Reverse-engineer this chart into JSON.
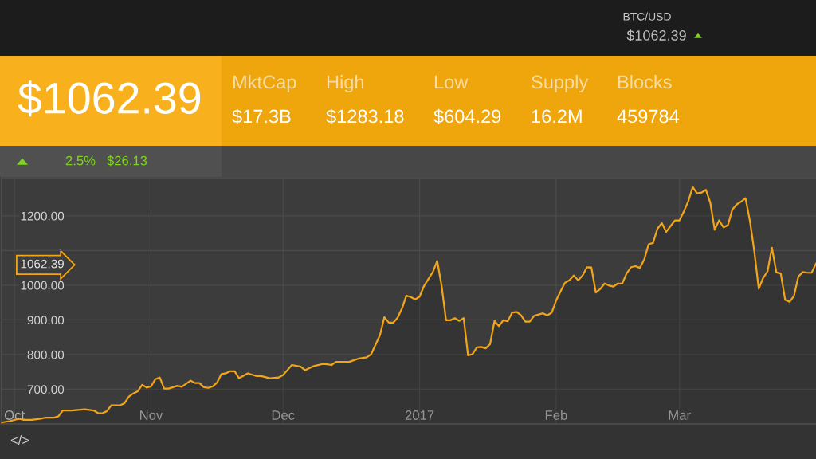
{
  "chart_data": [
    {
      "type": "other",
      "annotations": [
        "BTC/USD",
        "$1062.39",
        "$1062.39",
        "MktCap",
        "$17.3B",
        "High",
        "$1283.18",
        "Low",
        "$604.29",
        "Supply",
        "16.2M",
        "Blocks",
        "459784",
        "2.5%",
        "$26.13"
      ]
    },
    {
      "type": "area",
      "xlim": [
        "2016-09-28",
        "2017-04-01"
      ],
      "ylim": [
        600,
        1310
      ],
      "xticks": [
        {
          "value": "2016-10-01",
          "label": "Oct"
        },
        {
          "value": "2016-11-01",
          "label": "Nov"
        },
        {
          "value": "2016-12-01",
          "label": "Dec"
        },
        {
          "value": "2017-01-01",
          "label": "2017"
        },
        {
          "value": "2017-02-01",
          "label": "Feb"
        },
        {
          "value": "2017-03-01",
          "label": "Mar"
        }
      ],
      "yticks": [
        {
          "value": 700,
          "label": "700.00"
        },
        {
          "value": 800,
          "label": "800.00"
        },
        {
          "value": 900,
          "label": "900.00"
        },
        {
          "value": 1000,
          "label": "1000.00"
        },
        {
          "value": 1062.39,
          "label": "1062.39"
        },
        {
          "value": 1100,
          "label": null
        },
        {
          "value": 1200,
          "label": "1200.00"
        }
      ],
      "grid": true,
      "annotations": [
        "</>"
      ],
      "x": [
        "2016-09-28",
        "2016-09-30",
        "2016-10-02",
        "2016-10-03",
        "2016-10-05",
        "2016-10-07",
        "2016-10-08",
        "2016-10-10",
        "2016-10-11",
        "2016-10-12",
        "2016-10-14",
        "2016-10-16",
        "2016-10-17",
        "2016-10-19",
        "2016-10-20",
        "2016-10-21",
        "2016-10-22",
        "2016-10-23",
        "2016-10-25",
        "2016-10-26",
        "2016-10-27",
        "2016-10-28",
        "2016-10-29",
        "2016-10-30",
        "2016-10-31",
        "2016-11-01",
        "2016-11-02",
        "2016-11-03",
        "2016-11-04",
        "2016-11-05",
        "2016-11-07",
        "2016-11-08",
        "2016-11-10",
        "2016-11-11",
        "2016-11-12",
        "2016-11-13",
        "2016-11-14",
        "2016-11-15",
        "2016-11-16",
        "2016-11-17",
        "2016-11-18",
        "2016-11-19",
        "2016-11-20",
        "2016-11-21",
        "2016-11-23",
        "2016-11-25",
        "2016-11-26",
        "2016-11-28",
        "2016-11-30",
        "2016-12-01",
        "2016-12-03",
        "2016-12-05",
        "2016-12-06",
        "2016-12-08",
        "2016-12-10",
        "2016-12-11",
        "2016-12-12",
        "2016-12-13",
        "2016-12-15",
        "2016-12-16",
        "2016-12-18",
        "2016-12-20",
        "2016-12-21",
        "2016-12-23",
        "2016-12-24",
        "2016-12-25",
        "2016-12-26",
        "2016-12-27",
        "2016-12-28",
        "2016-12-29",
        "2016-12-30",
        "2016-12-31",
        "2017-01-01",
        "2017-01-02",
        "2017-01-04",
        "2017-01-05",
        "2017-01-06",
        "2017-01-07",
        "2017-01-08",
        "2017-01-09",
        "2017-01-10",
        "2017-01-11",
        "2017-01-12",
        "2017-01-13",
        "2017-01-14",
        "2017-01-15",
        "2017-01-16",
        "2017-01-17",
        "2017-01-18",
        "2017-01-19",
        "2017-01-20",
        "2017-01-21",
        "2017-01-22",
        "2017-01-23",
        "2017-01-24",
        "2017-01-25",
        "2017-01-26",
        "2017-01-27",
        "2017-01-29",
        "2017-01-30",
        "2017-01-31",
        "2017-02-01",
        "2017-02-02",
        "2017-02-03",
        "2017-02-04",
        "2017-02-05",
        "2017-02-06",
        "2017-02-07",
        "2017-02-08",
        "2017-02-09",
        "2017-02-10",
        "2017-02-11",
        "2017-02-12",
        "2017-02-13",
        "2017-02-14",
        "2017-02-15",
        "2017-02-16",
        "2017-02-17",
        "2017-02-18",
        "2017-02-19",
        "2017-02-20",
        "2017-02-21",
        "2017-02-22",
        "2017-02-23",
        "2017-02-24",
        "2017-02-25",
        "2017-02-26",
        "2017-02-27",
        "2017-02-28",
        "2017-03-01",
        "2017-03-02",
        "2017-03-03",
        "2017-03-04",
        "2017-03-05",
        "2017-03-06",
        "2017-03-07",
        "2017-03-08",
        "2017-03-09",
        "2017-03-10",
        "2017-03-11",
        "2017-03-12",
        "2017-03-13",
        "2017-03-14",
        "2017-03-15",
        "2017-03-16",
        "2017-03-17",
        "2017-03-18",
        "2017-03-19",
        "2017-03-20",
        "2017-03-21",
        "2017-03-22",
        "2017-03-23",
        "2017-03-24",
        "2017-03-25",
        "2017-03-26",
        "2017-03-27",
        "2017-03-28",
        "2017-03-29",
        "2017-03-30",
        "2017-03-31",
        "2017-04-01"
      ],
      "series": [
        {
          "color": "#f2a516",
          "values": [
            604,
            608,
            615,
            612,
            612,
            615,
            618,
            618,
            622,
            639,
            639,
            641,
            642,
            639,
            631,
            631,
            637,
            654,
            654,
            660,
            679,
            688,
            694,
            713,
            705,
            708,
            729,
            734,
            702,
            702,
            710,
            707,
            725,
            718,
            718,
            706,
            704,
            708,
            719,
            744,
            746,
            752,
            752,
            732,
            746,
            738,
            738,
            732,
            734,
            741,
            770,
            765,
            755,
            767,
            773,
            772,
            770,
            779,
            779,
            779,
            788,
            792,
            801,
            856,
            908,
            892,
            892,
            906,
            933,
            970,
            966,
            959,
            967,
            998,
            1038,
            1070,
            998,
            899,
            899,
            905,
            897,
            905,
            798,
            801,
            821,
            822,
            818,
            830,
            897,
            882,
            899,
            896,
            921,
            923,
            914,
            895,
            895,
            912,
            919,
            913,
            921,
            956,
            982,
            1007,
            1014,
            1028,
            1014,
            1028,
            1052,
            1051,
            979,
            989,
            1005,
            999,
            996,
            1005,
            1005,
            1034,
            1052,
            1055,
            1050,
            1074,
            1118,
            1122,
            1163,
            1179,
            1154,
            1171,
            1187,
            1187,
            1213,
            1242,
            1283,
            1265,
            1267,
            1275,
            1238,
            1160,
            1187,
            1167,
            1173,
            1218,
            1233,
            1241,
            1251,
            1185,
            1097,
            990,
            1021,
            1040,
            1108,
            1037,
            1034,
            958,
            952,
            969,
            1025,
            1038,
            1036,
            1036,
            1062.39
          ]
        }
      ]
    }
  ]
}
